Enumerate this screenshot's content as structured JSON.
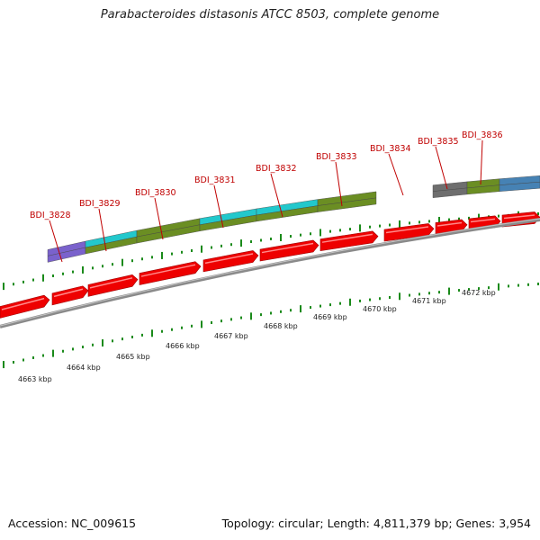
{
  "title": "Parabacteroides distasonis ATCC 8503, complete genome",
  "footer": {
    "accession": "Accession: NC_009615",
    "summary": "Topology: circular; Length: 4,811,379 bp; Genes: 3,954"
  },
  "colors": {
    "cds": "#ee0000",
    "backbone": "#888888",
    "tick": "#1a8a1a",
    "gene_label": "#c00000",
    "feature_palette": [
      "#7a62cc",
      "#22c8cc",
      "#6b8e23",
      "#6e6e6e",
      "#4682b4"
    ]
  },
  "scale_labels": [
    "4663 kbp",
    "4664 kbp",
    "4665 kbp",
    "4666 kbp",
    "4667 kbp",
    "4668 kbp",
    "4669 kbp",
    "4670 kbp",
    "4671 kbp",
    "4672 kbp"
  ],
  "gene_labels": [
    "BDI_3828",
    "BDI_3829",
    "BDI_3830",
    "BDI_3831",
    "BDI_3832",
    "BDI_3833",
    "BDI_3834",
    "BDI_3835",
    "BDI_3836"
  ]
}
